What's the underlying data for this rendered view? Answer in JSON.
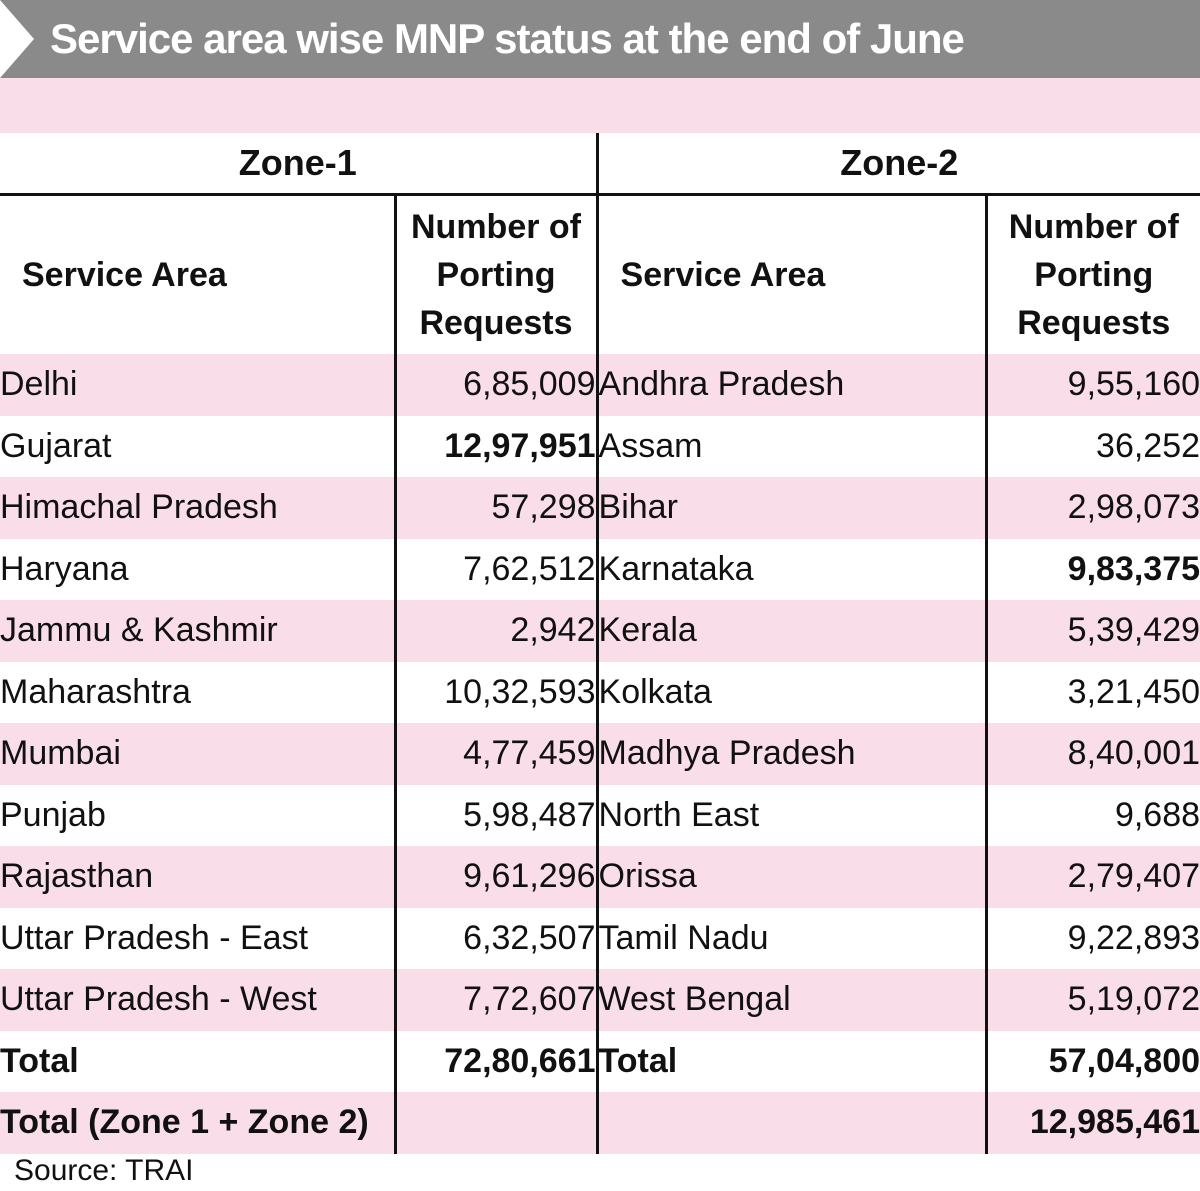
{
  "title": "Service area wise MNP status at the end of June",
  "chart_data": {
    "type": "table",
    "zones": [
      {
        "name": "Zone-1",
        "columns": [
          "Service Area",
          "Number of Porting Requests"
        ],
        "rows": [
          {
            "area": "Delhi",
            "value": "6,85,009",
            "bold": false
          },
          {
            "area": "Gujarat",
            "value": "12,97,951",
            "bold": true
          },
          {
            "area": "Himachal Pradesh",
            "value": "57,298",
            "bold": false
          },
          {
            "area": "Haryana",
            "value": "7,62,512",
            "bold": false
          },
          {
            "area": "Jammu & Kashmir",
            "value": "2,942",
            "bold": false
          },
          {
            "area": "Maharashtra",
            "value": "10,32,593",
            "bold": false
          },
          {
            "area": "Mumbai",
            "value": "4,77,459",
            "bold": false
          },
          {
            "area": "Punjab",
            "value": "5,98,487",
            "bold": false
          },
          {
            "area": "Rajasthan",
            "value": "9,61,296",
            "bold": false
          },
          {
            "area": "Uttar Pradesh - East",
            "value": "6,32,507",
            "bold": false
          },
          {
            "area": "Uttar Pradesh - West",
            "value": "7,72,607",
            "bold": false
          }
        ],
        "total_label": "Total",
        "total": "72,80,661"
      },
      {
        "name": "Zone-2",
        "columns": [
          "Service Area",
          "Number of Porting Requests"
        ],
        "rows": [
          {
            "area": "Andhra Pradesh",
            "value": "9,55,160",
            "bold": false
          },
          {
            "area": "Assam",
            "value": "36,252",
            "bold": false
          },
          {
            "area": "Bihar",
            "value": "2,98,073",
            "bold": false
          },
          {
            "area": "Karnataka",
            "value": "9,83,375",
            "bold": true
          },
          {
            "area": "Kerala",
            "value": "5,39,429",
            "bold": false
          },
          {
            "area": "Kolkata",
            "value": "3,21,450",
            "bold": false
          },
          {
            "area": "Madhya Pradesh",
            "value": "8,40,001",
            "bold": false
          },
          {
            "area": "North East",
            "value": "9,688",
            "bold": false
          },
          {
            "area": "Orissa",
            "value": "2,79,407",
            "bold": false
          },
          {
            "area": "Tamil Nadu",
            "value": "9,22,893",
            "bold": false
          },
          {
            "area": "West Bengal",
            "value": "5,19,072",
            "bold": false
          }
        ],
        "total_label": "Total",
        "total": "57,04,800"
      }
    ],
    "grand_total_label": "Total (Zone 1 + Zone 2)",
    "grand_total": "12,985,461"
  },
  "source": "Source: TRAI",
  "colors": {
    "title_bar": "#8a8a8a",
    "row_highlight": "#f9dde8"
  }
}
